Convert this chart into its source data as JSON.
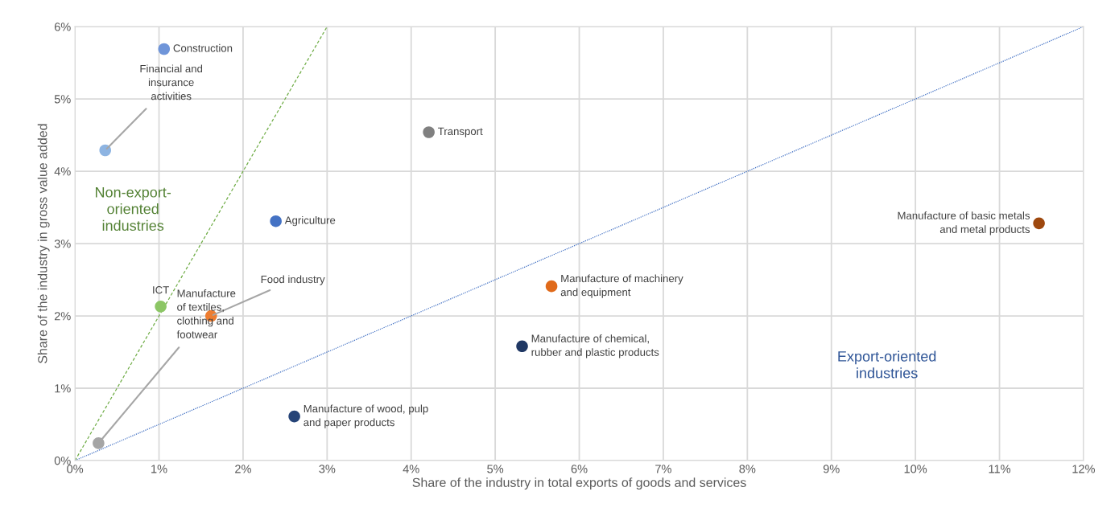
{
  "chart_data": {
    "type": "scatter",
    "xlabel": "Share of the industry in total exports of goods and services",
    "ylabel": "Share of the industry in gross value added",
    "xlim": [
      0,
      12
    ],
    "ylim": [
      0,
      6
    ],
    "xticks": [
      {
        "value": 0,
        "label": "0%"
      },
      {
        "value": 1,
        "label": "1%"
      },
      {
        "value": 2,
        "label": "2%"
      },
      {
        "value": 3,
        "label": "3%"
      },
      {
        "value": 4,
        "label": "4%"
      },
      {
        "value": 5,
        "label": "5%"
      },
      {
        "value": 6,
        "label": "6%"
      },
      {
        "value": 7,
        "label": "7%"
      },
      {
        "value": 8,
        "label": "8%"
      },
      {
        "value": 9,
        "label": "9%"
      },
      {
        "value": 10,
        "label": "10%"
      },
      {
        "value": 11,
        "label": "11%"
      },
      {
        "value": 12,
        "label": "12%"
      }
    ],
    "yticks": [
      {
        "value": 0,
        "label": "0%"
      },
      {
        "value": 1,
        "label": "1%"
      },
      {
        "value": 2,
        "label": "2%"
      },
      {
        "value": 3,
        "label": "3%"
      },
      {
        "value": 4,
        "label": "4%"
      },
      {
        "value": 5,
        "label": "5%"
      },
      {
        "value": 6,
        "label": "6%"
      }
    ],
    "grid": true,
    "marker": "circle",
    "legend": false,
    "series": [
      {
        "x": [
          1.06,
          0.36,
          4.21,
          2.39,
          1.02,
          1.62,
          0.28,
          2.61,
          5.32,
          5.67,
          11.47
        ],
        "values": [
          5.69,
          4.29,
          4.54,
          3.31,
          2.13,
          2.0,
          0.24,
          0.61,
          1.58,
          2.41,
          3.28
        ],
        "colors": [
          "#6f95d9",
          "#8db4e2",
          "#808080",
          "#4472c4",
          "#8cc665",
          "#ed7d31",
          "#a5a5a5",
          "#264478",
          "#203864",
          "#e06a1a",
          "#9e480e"
        ]
      },
      {
        "type": "line",
        "color": "#70ad47",
        "line_style": "dashed",
        "marker": "none",
        "x": [
          0,
          3
        ],
        "values": [
          0,
          6
        ]
      },
      {
        "type": "line",
        "color": "#4472c4",
        "line_style": "dotted",
        "marker": "none",
        "x": [
          0,
          12
        ],
        "values": [
          0,
          6
        ]
      }
    ],
    "annotations": [
      {
        "text": "Construction",
        "x": 1.06,
        "y": 5.69
      },
      {
        "text": "Financial and\ninsurance\nactivities",
        "x": 0.36,
        "y": 4.29
      },
      {
        "text": "Transport",
        "x": 4.21,
        "y": 4.54
      },
      {
        "text": "Agriculture",
        "x": 2.39,
        "y": 3.31
      },
      {
        "text": "ICT",
        "x": 1.02,
        "y": 2.13
      },
      {
        "text": "Food industry",
        "x": 1.62,
        "y": 2.0
      },
      {
        "text": "Manufacture\nof textiles,\nclothing and\nfootwear",
        "x": 0.28,
        "y": 0.24
      },
      {
        "text": "Manufacture of wood, pulp\nand paper products",
        "x": 2.61,
        "y": 0.61
      },
      {
        "text": "Manufacture of chemical,\nrubber and plastic products",
        "x": 5.32,
        "y": 1.58
      },
      {
        "text": "Manufacture of machinery\nand equipment",
        "x": 5.67,
        "y": 2.41
      },
      {
        "text": "Manufacture of basic metals\nand metal products",
        "x": 11.47,
        "y": 3.28
      },
      "Non-export-\noriented\nindustries",
      "Export-oriented\nindustries"
    ]
  }
}
